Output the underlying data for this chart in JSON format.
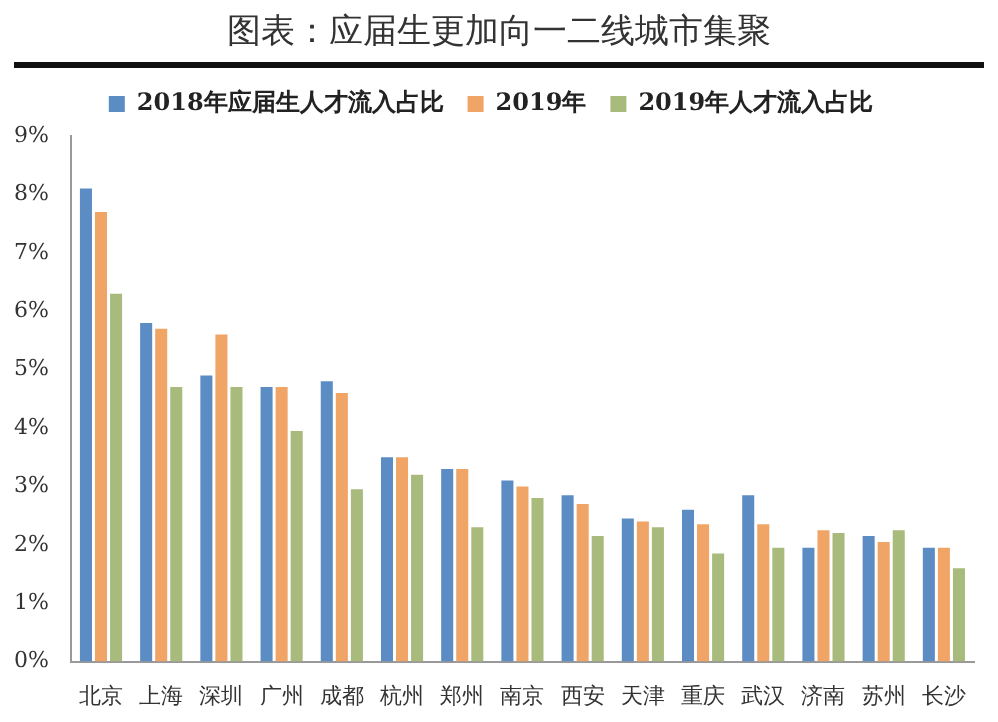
{
  "chart_data": {
    "type": "bar",
    "title": "图表：应届生更加向一二线城市集聚",
    "categories": [
      "北京",
      "上海",
      "深圳",
      "广州",
      "成都",
      "杭州",
      "郑州",
      "南京",
      "西安",
      "天津",
      "重庆",
      "武汉",
      "济南",
      "苏州",
      "长沙"
    ],
    "series": [
      {
        "name": "2018年应届生人才流入占比",
        "color": "#5b8cc4",
        "values": [
          8.1,
          5.8,
          4.9,
          4.7,
          4.8,
          3.5,
          3.3,
          3.1,
          2.85,
          2.45,
          2.6,
          2.85,
          1.95,
          2.15,
          1.95
        ]
      },
      {
        "name": "2019年",
        "color": "#f0a466",
        "values": [
          7.7,
          5.7,
          5.6,
          4.7,
          4.6,
          3.5,
          3.3,
          3.0,
          2.7,
          2.4,
          2.35,
          2.35,
          2.25,
          2.05,
          1.95
        ]
      },
      {
        "name": "2019年人才流入占比",
        "color": "#a8bb7c",
        "values": [
          6.3,
          4.7,
          4.7,
          3.95,
          2.95,
          3.2,
          2.3,
          2.8,
          2.15,
          2.3,
          1.85,
          1.95,
          2.2,
          2.25,
          1.6
        ]
      }
    ],
    "ylim": [
      0,
      9
    ],
    "yticks": [
      {
        "value": 0,
        "label": "0%"
      },
      {
        "value": 1,
        "label": "1%"
      },
      {
        "value": 2,
        "label": "2%"
      },
      {
        "value": 3,
        "label": "3%"
      },
      {
        "value": 4,
        "label": "4%"
      },
      {
        "value": 5,
        "label": "5%"
      },
      {
        "value": 6,
        "label": "6%"
      },
      {
        "value": 7,
        "label": "7%"
      },
      {
        "value": 8,
        "label": "8%"
      },
      {
        "value": 9,
        "label": "9%"
      }
    ],
    "grid": false,
    "legend": "top"
  }
}
